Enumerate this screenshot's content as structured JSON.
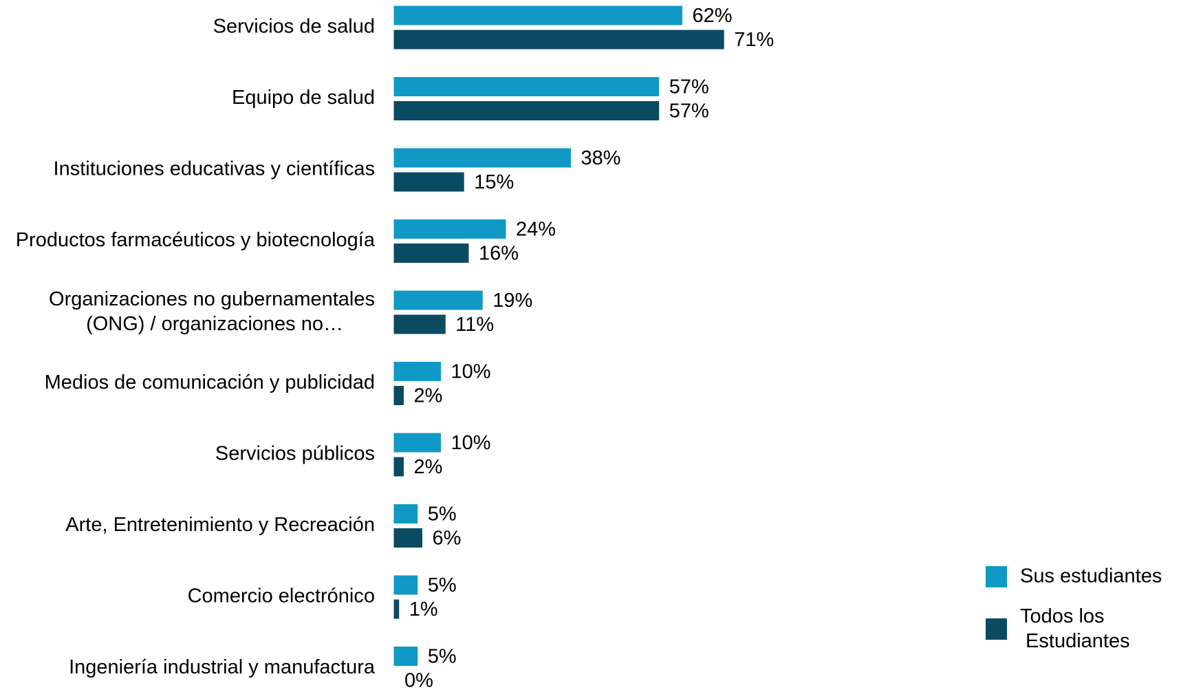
{
  "chart_data": {
    "type": "bar",
    "orientation": "horizontal",
    "categories": [
      "Servicios de salud",
      "Equipo de salud",
      "Instituciones educativas y científicas",
      "Productos farmacéuticos y biotecnología",
      "Organizaciones no gubernamentales (ONG) / organizaciones no…",
      "Medios de comunicación y publicidad",
      "Servicios públicos",
      "Arte, Entretenimiento y Recreación",
      "Comercio electrónico",
      "Ingeniería industrial y manufactura"
    ],
    "series": [
      {
        "name": "Sus estudiantes",
        "color": "#1099c5",
        "values": [
          62,
          57,
          38,
          24,
          19,
          10,
          10,
          5,
          5,
          5
        ],
        "value_labels": [
          "62%",
          "57%",
          "38%",
          "24%",
          "19%",
          "10%",
          "10%",
          "5%",
          "5%",
          "5%"
        ]
      },
      {
        "name": "Todos los Estudiantes",
        "color": "#0a4b62",
        "values": [
          71,
          57,
          15,
          16,
          11,
          2,
          2,
          6,
          1,
          0
        ],
        "value_labels": [
          "71%",
          "57%",
          "15%",
          "16%",
          "11%",
          "2%",
          "2%",
          "6%",
          "1%",
          "0%"
        ]
      }
    ],
    "xlim": [
      0,
      100
    ],
    "legend": "right"
  }
}
